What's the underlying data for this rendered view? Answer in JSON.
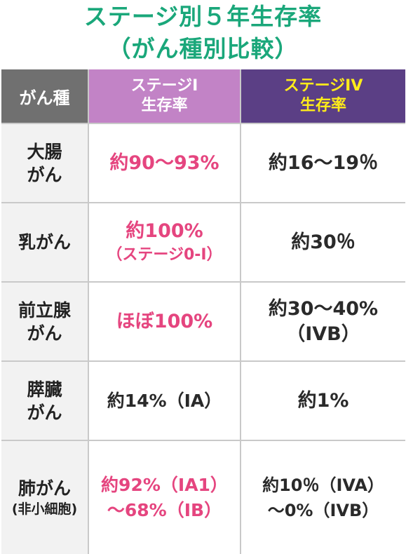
{
  "title": {
    "line1": "ステージ別５年生存率",
    "line2": "（がん種別比較）"
  },
  "header": {
    "type": "がん種",
    "stage1": [
      "ステージI",
      "生存率"
    ],
    "stage4": [
      "ステージIV",
      "生存率"
    ]
  },
  "rows": [
    {
      "label": [
        "大腸",
        "がん"
      ],
      "stage1": [
        "約90〜93%"
      ],
      "stage4": [
        "約16〜19％"
      ]
    },
    {
      "label": [
        "乳がん"
      ],
      "stage1": [
        "約100%",
        "（ステージ0-I）"
      ],
      "stage4": [
        "約30％"
      ]
    },
    {
      "label": [
        "前立腺",
        "がん"
      ],
      "stage1": [
        "ほぼ100%"
      ],
      "stage4": [
        "約30〜40%",
        "（IVB）"
      ]
    },
    {
      "label": [
        "膵臓",
        "がん"
      ],
      "stage1": [
        "約14%（IA）"
      ],
      "stage4": [
        "約1%"
      ]
    },
    {
      "label": [
        "肺がん",
        "(非小細胞)"
      ],
      "stage1": [
        "約92%（IA1）",
        "〜68%（IB）"
      ],
      "stage4": [
        "約10％（IVA）",
        "〜0%（IVB）"
      ]
    }
  ],
  "colors": {
    "title": "#1aa77a",
    "header_type_bg": "#707070",
    "header_stage1_bg": "#c283c6",
    "header_stage4_bg": "#5b3f85",
    "header_stage4_text": "#ffec1a",
    "highlight_text": "#e5457f"
  }
}
